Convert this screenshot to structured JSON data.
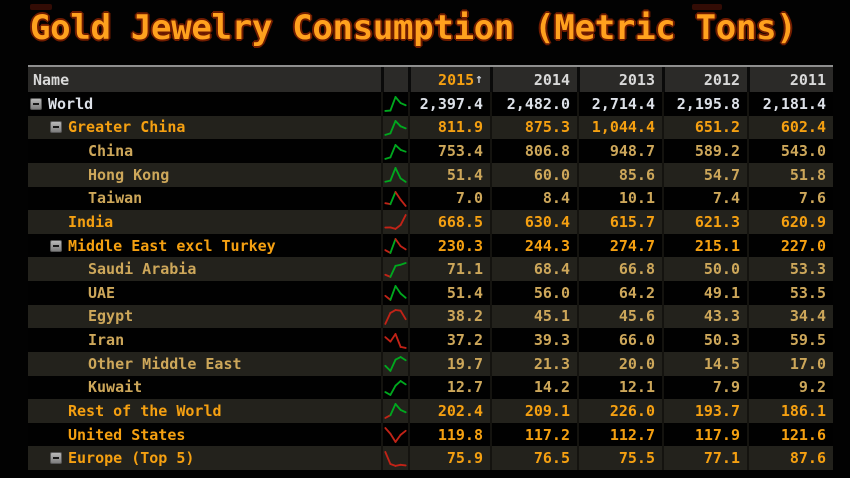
{
  "title": "Gold Jewelry Consumption (Metric Tons)",
  "colors": {
    "tones": {
      "white": "#dde1e8",
      "orange": "#f5a011",
      "tan": "#cda75a"
    },
    "header_text": "#d9d9d9",
    "sort_year": "#f5a011",
    "sort_arrow_color": "#c9cdd5",
    "spark": {
      "g": "#00a81e",
      "r": "#c22317"
    }
  },
  "table": {
    "name_header": "Name",
    "sort_arrow": "↑",
    "year_headers": [
      "2015",
      "2014",
      "2013",
      "2012",
      "2011"
    ],
    "sorted_year_index": 0,
    "rows": [
      {
        "label": "World",
        "level": 0,
        "expand_icon": true,
        "tone": "white",
        "values": [
          "2,397.4",
          "2,482.0",
          "2,714.4",
          "2,195.8",
          "2,181.4"
        ],
        "spark_segments": [
          "g",
          "g",
          "g",
          "g"
        ]
      },
      {
        "label": "Greater China",
        "level": 1,
        "expand_icon": true,
        "tone": "orange",
        "values": [
          "811.9",
          "875.3",
          "1,044.4",
          "651.2",
          "602.4"
        ],
        "spark_segments": [
          "g",
          "g",
          "g",
          "g"
        ]
      },
      {
        "label": "China",
        "level": 2,
        "expand_icon": false,
        "tone": "tan",
        "values": [
          "753.4",
          "806.8",
          "948.7",
          "589.2",
          "543.0"
        ],
        "spark_segments": [
          "g",
          "g",
          "g",
          "g"
        ]
      },
      {
        "label": "Hong Kong",
        "level": 2,
        "expand_icon": false,
        "tone": "tan",
        "values": [
          "51.4",
          "60.0",
          "85.6",
          "54.7",
          "51.8"
        ],
        "spark_segments": [
          "g",
          "g",
          "g",
          "g"
        ]
      },
      {
        "label": "Taiwan",
        "level": 2,
        "expand_icon": false,
        "tone": "tan",
        "values": [
          "7.0",
          "8.4",
          "10.1",
          "7.4",
          "7.6"
        ],
        "spark_segments": [
          "r",
          "g",
          "r",
          "r"
        ]
      },
      {
        "label": "India",
        "level": 1,
        "expand_icon": false,
        "tone": "orange",
        "values": [
          "668.5",
          "630.4",
          "615.7",
          "621.3",
          "620.9"
        ],
        "spark_segments": [
          "r",
          "r",
          "r",
          "r"
        ]
      },
      {
        "label": "Middle East excl Turkey",
        "level": 1,
        "expand_icon": true,
        "tone": "orange",
        "values": [
          "230.3",
          "244.3",
          "274.7",
          "215.1",
          "227.0"
        ],
        "spark_segments": [
          "r",
          "g",
          "r",
          "r"
        ]
      },
      {
        "label": "Saudi Arabia",
        "level": 2,
        "expand_icon": false,
        "tone": "tan",
        "values": [
          "71.1",
          "68.4",
          "66.8",
          "50.0",
          "53.3"
        ],
        "spark_segments": [
          "r",
          "g",
          "g",
          "g"
        ]
      },
      {
        "label": "UAE",
        "level": 2,
        "expand_icon": false,
        "tone": "tan",
        "values": [
          "51.4",
          "56.0",
          "64.2",
          "49.1",
          "53.5"
        ],
        "spark_segments": [
          "r",
          "g",
          "g",
          "g"
        ]
      },
      {
        "label": "Egypt",
        "level": 2,
        "expand_icon": false,
        "tone": "tan",
        "values": [
          "38.2",
          "45.1",
          "45.6",
          "43.3",
          "34.4"
        ],
        "spark_segments": [
          "r",
          "r",
          "r",
          "r"
        ]
      },
      {
        "label": "Iran",
        "level": 2,
        "expand_icon": false,
        "tone": "tan",
        "values": [
          "37.2",
          "39.3",
          "66.0",
          "50.3",
          "59.5"
        ],
        "spark_segments": [
          "r",
          "r",
          "r",
          "r"
        ]
      },
      {
        "label": "Other Middle East",
        "level": 2,
        "expand_icon": false,
        "tone": "tan",
        "values": [
          "19.7",
          "21.3",
          "20.0",
          "14.5",
          "17.0"
        ],
        "spark_segments": [
          "g",
          "g",
          "g",
          "g"
        ]
      },
      {
        "label": "Kuwait",
        "level": 2,
        "expand_icon": false,
        "tone": "tan",
        "values": [
          "12.7",
          "14.2",
          "12.1",
          "7.9",
          "9.2"
        ],
        "spark_segments": [
          "g",
          "g",
          "g",
          "g"
        ]
      },
      {
        "label": "Rest of the World",
        "level": 1,
        "expand_icon": false,
        "tone": "orange",
        "values": [
          "202.4",
          "209.1",
          "226.0",
          "193.7",
          "186.1"
        ],
        "spark_segments": [
          "r",
          "g",
          "g",
          "g"
        ]
      },
      {
        "label": "United States",
        "level": 1,
        "expand_icon": false,
        "tone": "orange",
        "values": [
          "119.8",
          "117.2",
          "112.7",
          "117.9",
          "121.6"
        ],
        "spark_segments": [
          "r",
          "r",
          "r",
          "r"
        ]
      },
      {
        "label": "Europe (Top 5)",
        "level": 1,
        "expand_icon": true,
        "tone": "orange",
        "values": [
          "75.9",
          "76.5",
          "75.5",
          "77.1",
          "87.6"
        ],
        "spark_segments": [
          "r",
          "r",
          "r",
          "r"
        ]
      }
    ]
  }
}
